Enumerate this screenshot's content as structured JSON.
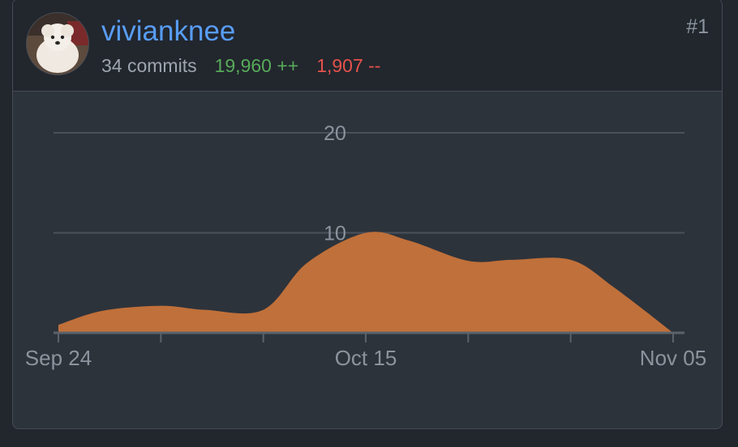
{
  "contributor": {
    "username": "vivianknee",
    "commits": "34 commits",
    "additions": "19,960 ++",
    "deletions": "1,907 --",
    "rank": "#1"
  },
  "colors": {
    "area": "#c0703a",
    "username": "#589df6",
    "additions": "#57ab5a",
    "deletions": "#e5534b"
  },
  "chart_data": {
    "type": "area",
    "x": [
      "2023-09-24",
      "2023-09-27",
      "2023-10-01",
      "2023-10-04",
      "2023-10-08",
      "2023-10-11",
      "2023-10-15",
      "2023-10-18",
      "2023-10-22",
      "2023-10-25",
      "2023-10-29",
      "2023-11-01",
      "2023-11-05"
    ],
    "values": [
      0.8,
      2.2,
      2.7,
      2.3,
      2.3,
      7.0,
      10.0,
      9.2,
      7.2,
      7.3,
      7.3,
      4.5,
      0
    ],
    "x_tick_labels": [
      "Sep 24",
      "Oct 15",
      "Nov 05"
    ],
    "y_tick_labels": [
      "10",
      "20"
    ],
    "ylim": [
      0,
      20
    ],
    "grid": true
  }
}
